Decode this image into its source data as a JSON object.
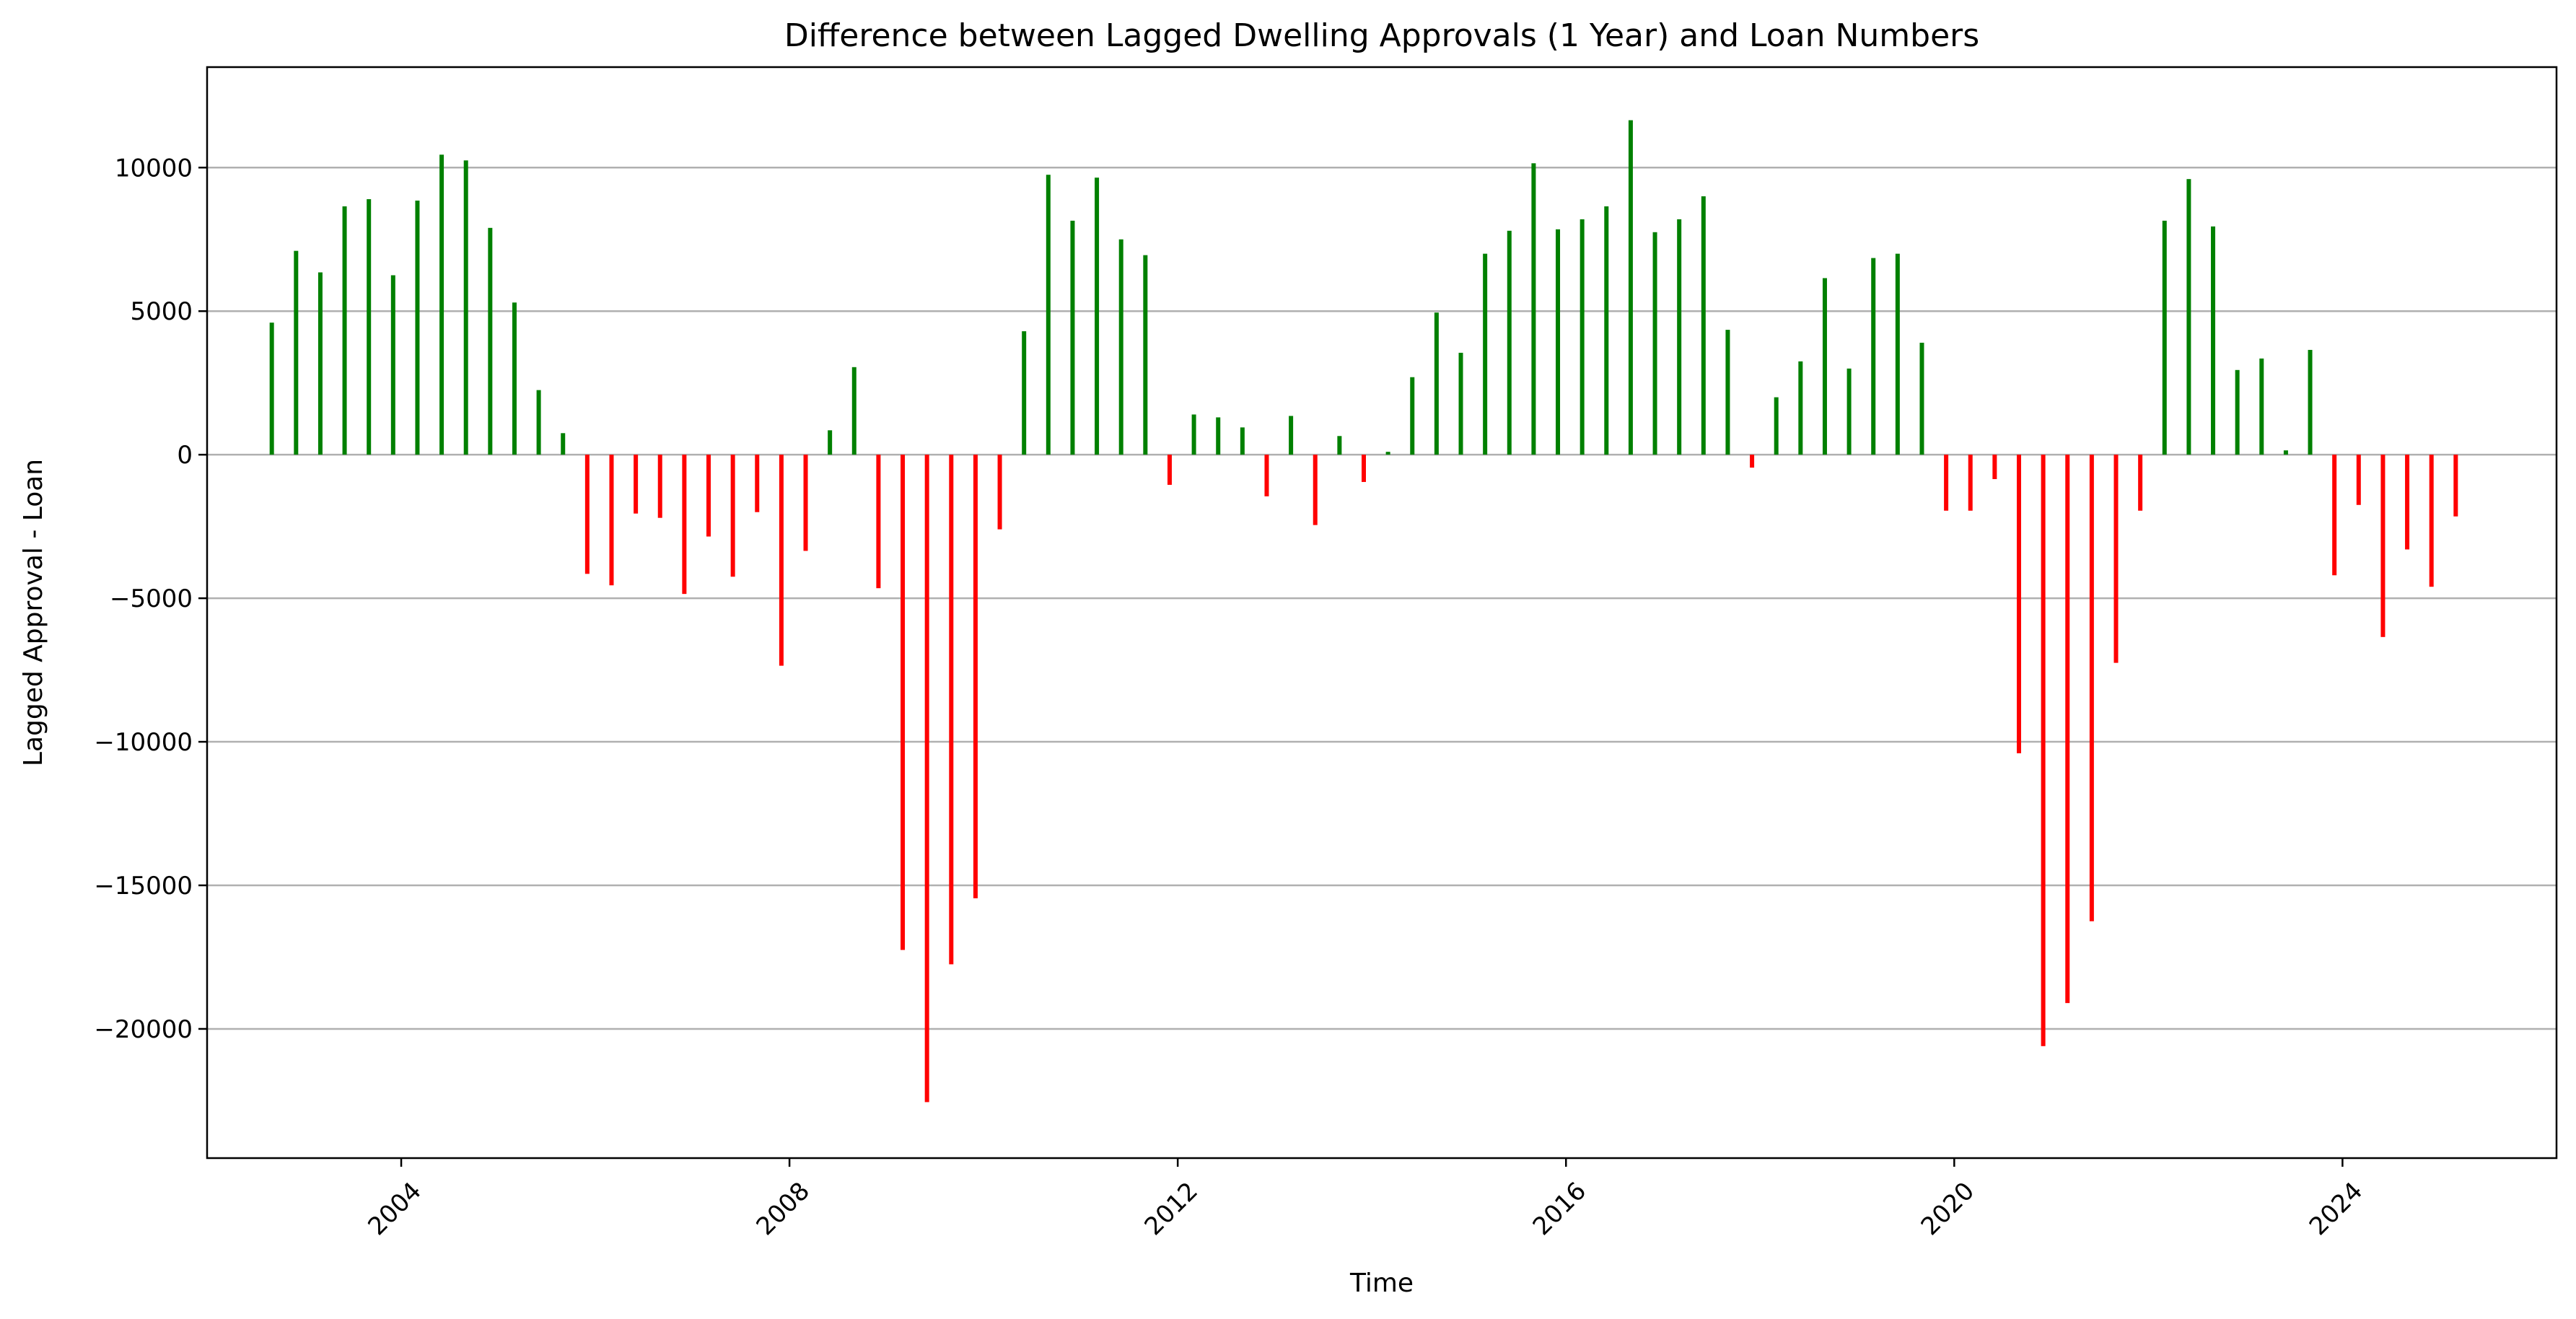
{
  "chart_data": {
    "type": "bar",
    "title": "Difference between Lagged Dwelling Approvals (1 Year) and Loan Numbers",
    "xlabel": "Time",
    "ylabel": "Lagged Approval - Loan",
    "x_axis": "date",
    "xlim": [
      "2002-01-01",
      "2026-03-15"
    ],
    "ylim": [
      -24500,
      13500
    ],
    "yticks": [
      -20000,
      -15000,
      -10000,
      -5000,
      0,
      5000,
      10000
    ],
    "xticks": [
      "2004-01-01",
      "2008-01-01",
      "2012-01-01",
      "2016-01-01",
      "2020-01-01",
      "2024-01-01"
    ],
    "xtick_labels": [
      "2004",
      "2008",
      "2012",
      "2016",
      "2020",
      "2024"
    ],
    "xtick_rotation": 45,
    "grid": "horizontal",
    "colors": {
      "positive": "#008000",
      "negative": "#ff0000",
      "grid": "#b0b0b0",
      "zero_line": "#b0b0b0"
    },
    "x": [
      "2002-09",
      "2002-12",
      "2003-03",
      "2003-06",
      "2003-09",
      "2003-12",
      "2004-03",
      "2004-06",
      "2004-09",
      "2004-12",
      "2005-03",
      "2005-06",
      "2005-09",
      "2005-12",
      "2006-03",
      "2006-06",
      "2006-09",
      "2006-12",
      "2007-03",
      "2007-06",
      "2007-09",
      "2007-12",
      "2008-03",
      "2008-06",
      "2008-09",
      "2008-12",
      "2009-03",
      "2009-06",
      "2009-09",
      "2009-12",
      "2010-03",
      "2010-06",
      "2010-09",
      "2010-12",
      "2011-03",
      "2011-06",
      "2011-09",
      "2011-12",
      "2012-03",
      "2012-06",
      "2012-09",
      "2012-12",
      "2013-03",
      "2013-06",
      "2013-09",
      "2013-12",
      "2014-03",
      "2014-06",
      "2014-09",
      "2014-12",
      "2015-03",
      "2015-06",
      "2015-09",
      "2015-12",
      "2016-03",
      "2016-06",
      "2016-09",
      "2016-12",
      "2017-03",
      "2017-06",
      "2017-09",
      "2017-12",
      "2018-03",
      "2018-06",
      "2018-09",
      "2018-12",
      "2019-03",
      "2019-06",
      "2019-09",
      "2019-12",
      "2020-03",
      "2020-06",
      "2020-09",
      "2020-12",
      "2021-03",
      "2021-06",
      "2021-09",
      "2021-12",
      "2022-03",
      "2022-06",
      "2022-09",
      "2022-12",
      "2023-03",
      "2023-06",
      "2023-09",
      "2023-12",
      "2024-03",
      "2024-06",
      "2024-09",
      "2024-12",
      "2025-03"
    ],
    "values": [
      4600,
      7100,
      6350,
      8650,
      8900,
      6250,
      8850,
      10450,
      10250,
      7900,
      5300,
      2250,
      750,
      -4150,
      -4550,
      -2050,
      -2200,
      -4850,
      -2850,
      -4250,
      -2000,
      -7350,
      -3350,
      850,
      3050,
      -4650,
      -17250,
      -22550,
      -17750,
      -15450,
      -2600,
      4300,
      9750,
      8150,
      9650,
      7500,
      6950,
      -1050,
      1400,
      1300,
      950,
      -1450,
      1350,
      -2450,
      650,
      -950,
      100,
      2700,
      4950,
      3550,
      7000,
      7800,
      10150,
      7850,
      8200,
      8650,
      11650,
      7750,
      8200,
      9000,
      4350,
      -450,
      2000,
      3250,
      6150,
      3000,
      6850,
      7000,
      3900,
      -1950,
      -1950,
      -850,
      -10400,
      -20600,
      -19100,
      -16250,
      -7250,
      -1950,
      8150,
      9600,
      7950,
      2950,
      3350,
      150,
      3650,
      -4200,
      -1750,
      -6350,
      -3300,
      -4600,
      -2150
    ]
  }
}
